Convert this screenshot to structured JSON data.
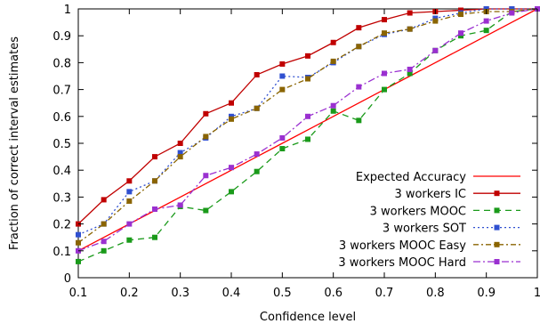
{
  "chart_data": {
    "type": "line",
    "xlabel": "Confidence level",
    "ylabel": "Fraction of correct interval estimates",
    "xlim": [
      0.1,
      1
    ],
    "ylim": [
      0,
      1
    ],
    "xticks": [
      "0.1",
      "0.2",
      "0.3",
      "0.4",
      "0.5",
      "0.6",
      "0.7",
      "0.8",
      "0.9",
      "1"
    ],
    "yticks": [
      "0",
      "0.1",
      "0.2",
      "0.3",
      "0.4",
      "0.5",
      "0.6",
      "0.7",
      "0.8",
      "0.9",
      "1"
    ],
    "grid": false,
    "legend": "bottom-right",
    "x": [
      0.1,
      0.15,
      0.2,
      0.25,
      0.3,
      0.35,
      0.4,
      0.45,
      0.5,
      0.55,
      0.6,
      0.65,
      0.7,
      0.75,
      0.8,
      0.85,
      0.9,
      0.95,
      1
    ],
    "series": [
      {
        "name": "Expected Accuracy",
        "color": "#ff0000",
        "dash": "",
        "marker": false,
        "values": [
          0.1,
          0.15,
          0.2,
          0.25,
          0.3,
          0.35,
          0.4,
          0.45,
          0.5,
          0.55,
          0.6,
          0.65,
          0.7,
          0.75,
          0.8,
          0.85,
          0.9,
          0.95,
          1.0
        ]
      },
      {
        "name": "3 workers IC",
        "color": "#c00000",
        "dash": "",
        "marker": true,
        "values": [
          0.2,
          0.29,
          0.36,
          0.45,
          0.5,
          0.61,
          0.65,
          0.755,
          0.795,
          0.825,
          0.875,
          0.93,
          0.96,
          0.985,
          0.99,
          0.995,
          1.0,
          1.0,
          1.0
        ]
      },
      {
        "name": "3 workers MOOC",
        "color": "#1a9a1a",
        "dash": "7,5",
        "marker": true,
        "values": [
          0.06,
          0.1,
          0.14,
          0.15,
          0.265,
          0.25,
          0.32,
          0.395,
          0.48,
          0.515,
          0.62,
          0.585,
          0.7,
          0.76,
          0.845,
          0.9,
          0.92,
          0.99,
          1.0
        ]
      },
      {
        "name": "3 workers SOT",
        "color": "#3050d0",
        "dash": "2,3",
        "marker": true,
        "values": [
          0.16,
          0.2,
          0.32,
          0.36,
          0.465,
          0.52,
          0.6,
          0.63,
          0.75,
          0.745,
          0.8,
          0.86,
          0.905,
          0.925,
          0.965,
          0.985,
          1.0,
          1.0,
          1.0
        ]
      },
      {
        "name": "3 workers MOOC Easy",
        "color": "#8a6400",
        "dash": "6,3,2,3",
        "marker": true,
        "values": [
          0.13,
          0.2,
          0.285,
          0.36,
          0.45,
          0.525,
          0.59,
          0.63,
          0.7,
          0.74,
          0.805,
          0.86,
          0.91,
          0.925,
          0.955,
          0.98,
          0.99,
          0.99,
          1.0
        ]
      },
      {
        "name": "3 workers MOOC Hard",
        "color": "#9a30d0",
        "dash": "8,3,2,3",
        "marker": true,
        "values": [
          0.1,
          0.135,
          0.2,
          0.255,
          0.27,
          0.38,
          0.41,
          0.46,
          0.52,
          0.6,
          0.64,
          0.71,
          0.76,
          0.775,
          0.845,
          0.91,
          0.955,
          0.985,
          1.0
        ]
      }
    ]
  }
}
